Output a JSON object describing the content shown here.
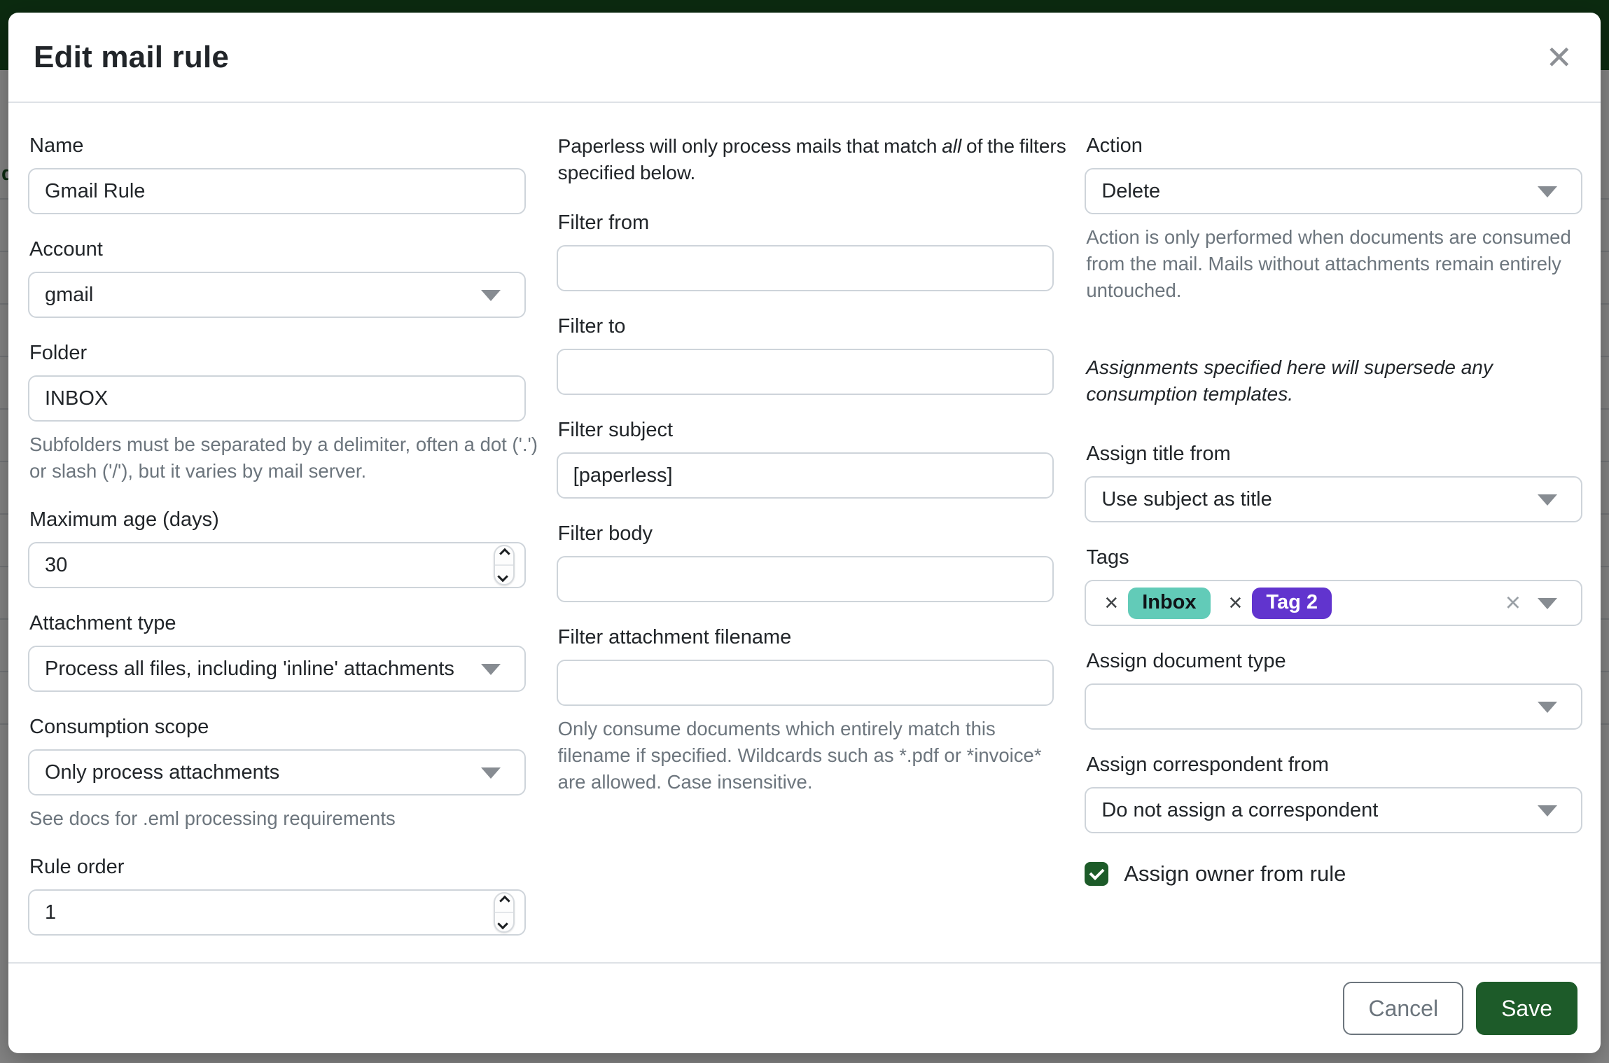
{
  "page_behind": {
    "link_fragment": "d"
  },
  "icons": {
    "close": "✕",
    "tag_remove": "×",
    "tags_clear": "×"
  },
  "colors": {
    "primary": "#1d5b29",
    "navbar": "#17541f",
    "tag_inbox_bg": "#62cbb8",
    "tag2_bg": "#6134ce"
  },
  "modal": {
    "title": "Edit mail rule",
    "general": {
      "name": {
        "label": "Name",
        "value": "Gmail Rule"
      },
      "account": {
        "label": "Account",
        "value": "gmail"
      },
      "folder": {
        "label": "Folder",
        "value": "INBOX",
        "help": "Subfolders must be separated by a delimiter, often a dot ('.') or slash ('/'), but it varies by mail server."
      },
      "max_age": {
        "label": "Maximum age (days)",
        "value": "30"
      },
      "attachment_type": {
        "label": "Attachment type",
        "value": "Process all files, including 'inline' attachments"
      },
      "consumption_scope": {
        "label": "Consumption scope",
        "value": "Only process attachments",
        "help": "See docs for .eml processing requirements"
      },
      "rule_order": {
        "label": "Rule order",
        "value": "1"
      }
    },
    "filters": {
      "intro_pre": "Paperless will only process mails that match ",
      "intro_emph": "all",
      "intro_post": " of the filters specified below.",
      "from": {
        "label": "Filter from",
        "value": ""
      },
      "to": {
        "label": "Filter to",
        "value": ""
      },
      "subject": {
        "label": "Filter subject",
        "value": "[paperless]"
      },
      "body": {
        "label": "Filter body",
        "value": ""
      },
      "filename": {
        "label": "Filter attachment filename",
        "value": "",
        "help": "Only consume documents which entirely match this filename if specified. Wildcards such as *.pdf or *invoice* are allowed. Case insensitive."
      }
    },
    "actions": {
      "action": {
        "label": "Action",
        "value": "Delete",
        "help": "Action is only performed when documents are consumed from the mail. Mails without attachments remain entirely untouched."
      },
      "note": "Assignments specified here will supersede any consumption templates.",
      "assign_title": {
        "label": "Assign title from",
        "value": "Use subject as title"
      },
      "tags": {
        "label": "Tags",
        "items": [
          {
            "name": "Inbox",
            "bg": "#62cbb8",
            "fg": "#101418"
          },
          {
            "name": "Tag 2",
            "bg": "#6134ce",
            "fg": "#ffffff"
          }
        ]
      },
      "assign_document_type": {
        "label": "Assign document type",
        "value": ""
      },
      "assign_correspondent": {
        "label": "Assign correspondent from",
        "value": "Do not assign a correspondent"
      },
      "assign_owner": {
        "label": "Assign owner from rule",
        "checked": true
      }
    },
    "footer": {
      "cancel": "Cancel",
      "save": "Save"
    }
  }
}
